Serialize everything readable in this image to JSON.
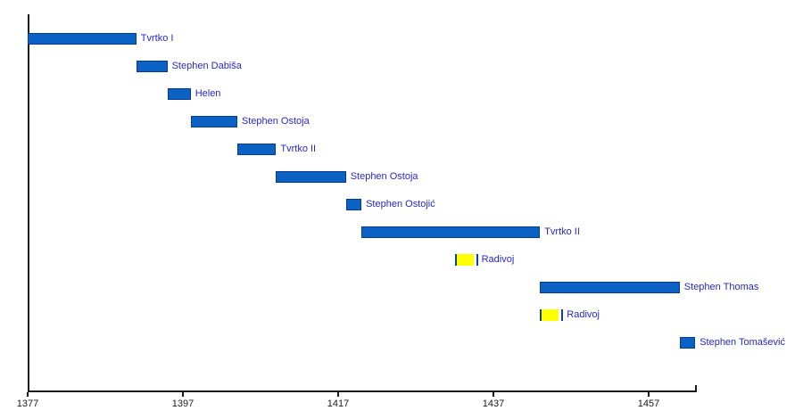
{
  "colors": {
    "bar_blue": "#0b61c4",
    "bar_blue_border": "#083c8e",
    "bar_yellow": "#ffff00",
    "marker_blue": "#0b45a0",
    "label_text": "#2727cd",
    "axis_color": "#1a1a1a"
  },
  "chart_data": {
    "type": "bar",
    "subtype": "timeline-gantt",
    "legend_position": "none",
    "grid": false,
    "axis": {
      "orientation": "horizontal-time",
      "start_year": 1377,
      "end_year": 1463,
      "ticks": [
        "1377",
        "1397",
        "1417",
        "1437",
        "1457"
      ],
      "tick_years": [
        1377,
        1397,
        1417,
        1437,
        1457
      ]
    },
    "series": [
      {
        "label": "Tvrtko I",
        "start": 1377,
        "end": 1391,
        "color": "blue"
      },
      {
        "label": "Stephen Dabiša",
        "start": 1391,
        "end": 1395,
        "color": "blue"
      },
      {
        "label": "Helen",
        "start": 1395,
        "end": 1398,
        "color": "blue"
      },
      {
        "label": "Stephen Ostoja",
        "start": 1398,
        "end": 1404,
        "color": "blue"
      },
      {
        "label": "Tvrtko II",
        "start": 1404,
        "end": 1409,
        "color": "blue"
      },
      {
        "label": "Stephen Ostoja",
        "start": 1409,
        "end": 1418,
        "color": "blue"
      },
      {
        "label": "Stephen Ostojić",
        "start": 1418,
        "end": 1420,
        "color": "blue"
      },
      {
        "label": "Tvrtko II",
        "start": 1420,
        "end": 1443,
        "color": "blue"
      },
      {
        "label": "Radivoj",
        "start": 1432,
        "end": 1435,
        "color": "yellow"
      },
      {
        "label": "Stephen Thomas",
        "start": 1443,
        "end": 1461,
        "color": "blue"
      },
      {
        "label": "Radivoj",
        "start": 1443,
        "end": 1446,
        "color": "yellow"
      },
      {
        "label": "Stephen Tomašević",
        "start": 1461,
        "end": 1463,
        "color": "blue"
      }
    ]
  }
}
